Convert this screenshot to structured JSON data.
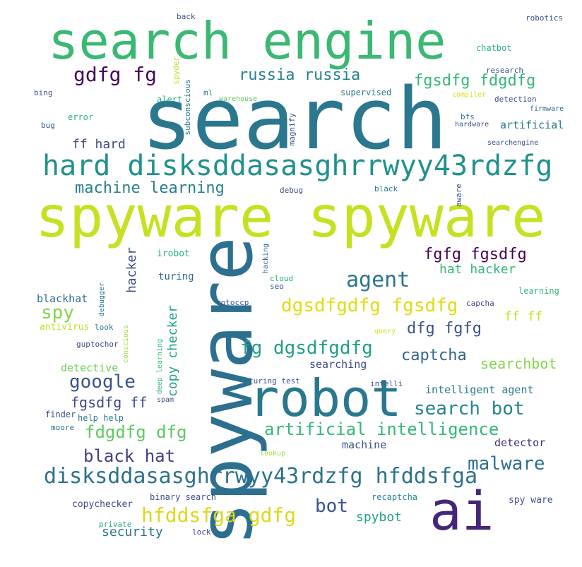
{
  "words": [
    {
      "id": "search-engine",
      "text": "search engine",
      "color": "#3bb873"
    },
    {
      "id": "search",
      "text": "search",
      "color": "#2a778e"
    },
    {
      "id": "spyware-spyware",
      "text": "spyware spyware",
      "color": "#c7e022"
    },
    {
      "id": "hard-disk",
      "text": "hard disksddasasghrrwyy43rdzfg",
      "color": "#21918c"
    },
    {
      "id": "spyware",
      "text": "spyware",
      "color": "#2c6f8e"
    },
    {
      "id": "robot",
      "text": "robot",
      "color": "#2a788e"
    },
    {
      "id": "ai",
      "text": "ai",
      "color": "#46267a"
    },
    {
      "id": "gdfg-fg",
      "text": "gdfg fg",
      "color": "#46085c"
    },
    {
      "id": "russia-russia",
      "text": "russia russia",
      "color": "#26828e"
    },
    {
      "id": "fgsdfg-fdgdfg",
      "text": "fgsdfg fdgdfg",
      "color": "#35b779"
    },
    {
      "id": "ff-hard",
      "text": "ff hard",
      "color": "#3e4a89"
    },
    {
      "id": "machine-learning",
      "text": "machine learning",
      "color": "#277f8e"
    },
    {
      "id": "agent",
      "text": "agent",
      "color": "#2a768e"
    },
    {
      "id": "fgfg-fgsdfg",
      "text": "fgfg fgsdfg",
      "color": "#440154"
    },
    {
      "id": "hat-hacker",
      "text": "hat hacker",
      "color": "#35b779"
    },
    {
      "id": "dgsdfgdfg-fgsdfg",
      "text": "dgsdfgdfg fgsdfg",
      "color": "#e0dd12"
    },
    {
      "id": "dfg-fgfg",
      "text": "dfg fgfg",
      "color": "#3b528b"
    },
    {
      "id": "fg-dgsdfgdfg",
      "text": "fg dgsdfgdfg",
      "color": "#1f9f88"
    },
    {
      "id": "captcha",
      "text": "captcha",
      "color": "#31668e"
    },
    {
      "id": "searchbot",
      "text": "searchbot",
      "color": "#84d44b"
    },
    {
      "id": "google",
      "text": "google",
      "color": "#3b528b"
    },
    {
      "id": "spy",
      "text": "spy",
      "color": "#84d44b"
    },
    {
      "id": "hacker",
      "text": "hacker",
      "color": "#3e4c8a"
    },
    {
      "id": "copy-checker",
      "text": "copy checker",
      "color": "#20a386"
    },
    {
      "id": "search-bot",
      "text": "search bot",
      "color": "#25858e"
    },
    {
      "id": "fgsdfg-ff",
      "text": "fgsdfg ff",
      "color": "#3e4a89"
    },
    {
      "id": "fdgdfg-dfg",
      "text": "fdgdfg dfg",
      "color": "#5ec962"
    },
    {
      "id": "artificial-intelligence",
      "text": "artificial intelligence",
      "color": "#35b779"
    },
    {
      "id": "black-hat",
      "text": "black hat",
      "color": "#433e85"
    },
    {
      "id": "malware",
      "text": "malware",
      "color": "#2c728e"
    },
    {
      "id": "disks-hfddsfga",
      "text": "disksddasasghrrwyy43rdzfg hfddsfga",
      "color": "#2c728e"
    },
    {
      "id": "hfddsfga-gdfg",
      "text": "hfddsfga gdfg",
      "color": "#ddd81c"
    },
    {
      "id": "bot",
      "text": "bot",
      "color": "#3b528b"
    },
    {
      "id": "spybot",
      "text": "spybot",
      "color": "#1f9e89"
    },
    {
      "id": "security",
      "text": "security",
      "color": "#2a768e"
    },
    {
      "id": "ff-ff",
      "text": "ff ff",
      "color": "#c8e020"
    },
    {
      "id": "detective",
      "text": "detective",
      "color": "#6ece58"
    },
    {
      "id": "searching",
      "text": "searching",
      "color": "#3e4a89"
    },
    {
      "id": "intelligent-agent",
      "text": "intelligent agent",
      "color": "#2a788e"
    },
    {
      "id": "machine",
      "text": "machine",
      "color": "#3b528b"
    },
    {
      "id": "detector",
      "text": "detector",
      "color": "#46307e"
    },
    {
      "id": "artificial",
      "text": "artificial",
      "color": "#297a8e"
    },
    {
      "id": "blackhat",
      "text": "blackhat",
      "color": "#2c728e"
    },
    {
      "id": "turing",
      "text": "turing",
      "color": "#31688e"
    },
    {
      "id": "irobot",
      "text": "irobot",
      "color": "#2db27d"
    },
    {
      "id": "antivirus",
      "text": "antivirus",
      "color": "#c0df25"
    },
    {
      "id": "chatbot",
      "text": "chatbot",
      "color": "#2cb17e"
    },
    {
      "id": "supervised",
      "text": "supervised",
      "color": "#2a788e"
    },
    {
      "id": "error",
      "text": "error",
      "color": "#29af7f"
    },
    {
      "id": "alert",
      "text": "alert",
      "color": "#25ac82"
    },
    {
      "id": "magnify",
      "text": "magnify",
      "color": "#3b528b"
    },
    {
      "id": "subconscious",
      "text": "subconscious",
      "color": "#2a778e"
    },
    {
      "id": "spyder",
      "text": "spyder",
      "color": "#bddf26"
    },
    {
      "id": "copychecker",
      "text": "copychecker",
      "color": "#3e4989"
    },
    {
      "id": "binary-search",
      "text": "binary search",
      "color": "#3e4c8a"
    },
    {
      "id": "recaptcha",
      "text": "recaptcha",
      "color": "#25858e"
    },
    {
      "id": "spy-ware",
      "text": "spy ware",
      "color": "#3b528b"
    },
    {
      "id": "help-help",
      "text": "help help",
      "color": "#2a788e"
    },
    {
      "id": "finder",
      "text": "finder",
      "color": "#3e4c8a"
    },
    {
      "id": "moore",
      "text": "moore",
      "color": "#2a778e"
    },
    {
      "id": "private",
      "text": "private",
      "color": "#21a685"
    },
    {
      "id": "lock",
      "text": "lock",
      "color": "#433e85"
    },
    {
      "id": "turing-test",
      "text": "turing test",
      "color": "#3b528b"
    },
    {
      "id": "intelli",
      "text": "intelli",
      "color": "#3b528b"
    },
    {
      "id": "lookup",
      "text": "lookup",
      "color": "#9dd93b"
    },
    {
      "id": "deep-learning",
      "text": "deep learning",
      "color": "#37b878"
    },
    {
      "id": "spam",
      "text": "spam",
      "color": "#3e4c8a"
    },
    {
      "id": "guptochor",
      "text": "guptochor",
      "color": "#3e4989"
    },
    {
      "id": "look",
      "text": "look",
      "color": "#2c728e"
    },
    {
      "id": "conscious",
      "text": "conscious",
      "color": "#a0da39"
    },
    {
      "id": "debugger",
      "text": "debugger",
      "color": "#2a778e"
    },
    {
      "id": "rotoccp",
      "text": "rotoccp",
      "color": "#3b528b"
    },
    {
      "id": "hacking",
      "text": "hacking",
      "color": "#31688e"
    },
    {
      "id": "cloud",
      "text": "cloud",
      "color": "#29af7f"
    },
    {
      "id": "seo",
      "text": "seo",
      "color": "#3b528b"
    },
    {
      "id": "capcha",
      "text": "capcha",
      "color": "#433e85"
    },
    {
      "id": "learning",
      "text": "learning",
      "color": "#2fb47c"
    },
    {
      "id": "query",
      "text": "query",
      "color": "#d5e21a"
    },
    {
      "id": "robotics",
      "text": "robotics",
      "color": "#3b528b"
    },
    {
      "id": "research",
      "text": "research",
      "color": "#3b528b"
    },
    {
      "id": "compiler",
      "text": "compiler",
      "color": "#d8e219"
    },
    {
      "id": "detection",
      "text": "detection",
      "color": "#3b528b"
    },
    {
      "id": "firmware",
      "text": "firmware",
      "color": "#31688e"
    },
    {
      "id": "bfs",
      "text": "bfs",
      "color": "#2a788e"
    },
    {
      "id": "hardware",
      "text": "hardware",
      "color": "#3b528b"
    },
    {
      "id": "searchengine",
      "text": "searchengine",
      "color": "#3b528b"
    },
    {
      "id": "black",
      "text": "black",
      "color": "#2a788e"
    },
    {
      "id": "aware",
      "text": "aware",
      "color": "#3b528b"
    },
    {
      "id": "debug",
      "text": "debug",
      "color": "#3e4c8a"
    },
    {
      "id": "bing",
      "text": "bing",
      "color": "#3b528b"
    },
    {
      "id": "bug",
      "text": "bug",
      "color": "#3b528b"
    },
    {
      "id": "ml",
      "text": "ml",
      "color": "#2a788e"
    },
    {
      "id": "warehouse",
      "text": "warehouse",
      "color": "#5ec962"
    },
    {
      "id": "back",
      "text": "back",
      "color": "#3b528b"
    }
  ]
}
